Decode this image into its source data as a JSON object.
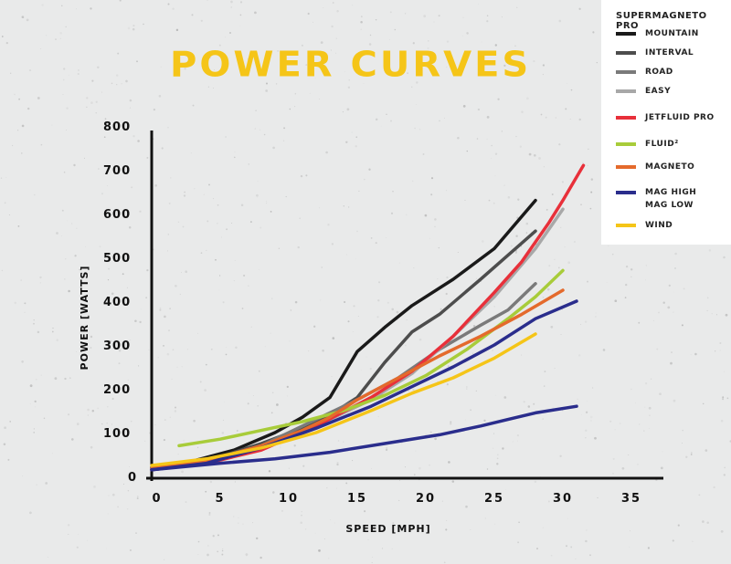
{
  "chart_data": {
    "type": "line",
    "title": "POWER CURVES",
    "xlabel": "SPEED [MPH]",
    "ylabel": "POWER [WATTS]",
    "xlim": [
      0,
      36
    ],
    "ylim": [
      0,
      800
    ],
    "xticks": [
      0,
      5,
      10,
      15,
      20,
      25,
      30,
      35
    ],
    "yticks": [
      0,
      100,
      200,
      300,
      400,
      500,
      600,
      700,
      800
    ],
    "grid": false,
    "legend_position": "top-right",
    "legend_group_title": "SUPERMAGNETO PRO",
    "series": [
      {
        "name": "MOUNTAIN",
        "color": "#1a1a1a",
        "points": [
          [
            0,
            20
          ],
          [
            3,
            35
          ],
          [
            6,
            60
          ],
          [
            9,
            100
          ],
          [
            11,
            135
          ],
          [
            13,
            180
          ],
          [
            15,
            285
          ],
          [
            17,
            340
          ],
          [
            19,
            390
          ],
          [
            22,
            450
          ],
          [
            25,
            520
          ],
          [
            28,
            630
          ]
        ]
      },
      {
        "name": "INTERVAL",
        "color": "#4d4d4d",
        "points": [
          [
            0,
            20
          ],
          [
            4,
            35
          ],
          [
            8,
            75
          ],
          [
            11,
            110
          ],
          [
            13,
            140
          ],
          [
            15,
            180
          ],
          [
            17,
            260
          ],
          [
            19,
            330
          ],
          [
            21,
            370
          ],
          [
            24,
            450
          ],
          [
            28,
            560
          ]
        ]
      },
      {
        "name": "ROAD",
        "color": "#7a7a7a",
        "points": [
          [
            0,
            20
          ],
          [
            4,
            35
          ],
          [
            8,
            70
          ],
          [
            12,
            130
          ],
          [
            15,
            175
          ],
          [
            18,
            225
          ],
          [
            21,
            290
          ],
          [
            24,
            345
          ],
          [
            26,
            380
          ],
          [
            28,
            440
          ]
        ]
      },
      {
        "name": "EASY",
        "color": "#a8a8a8",
        "points": [
          [
            0,
            18
          ],
          [
            4,
            30
          ],
          [
            8,
            65
          ],
          [
            12,
            115
          ],
          [
            16,
            175
          ],
          [
            19,
            235
          ],
          [
            22,
            320
          ],
          [
            25,
            410
          ],
          [
            28,
            520
          ],
          [
            30,
            610
          ]
        ]
      },
      {
        "name": "JETFLUID PRO",
        "color": "#e8303a",
        "points": [
          [
            0,
            15
          ],
          [
            4,
            30
          ],
          [
            8,
            60
          ],
          [
            12,
            115
          ],
          [
            16,
            180
          ],
          [
            19,
            240
          ],
          [
            22,
            320
          ],
          [
            25,
            420
          ],
          [
            27,
            490
          ],
          [
            29,
            580
          ],
          [
            30,
            630
          ],
          [
            31.5,
            710
          ]
        ]
      },
      {
        "name": "FLUID²",
        "color": "#a8cc3a",
        "points": [
          [
            2,
            70
          ],
          [
            5,
            85
          ],
          [
            8,
            105
          ],
          [
            11,
            125
          ],
          [
            14,
            150
          ],
          [
            17,
            185
          ],
          [
            20,
            230
          ],
          [
            23,
            290
          ],
          [
            26,
            360
          ],
          [
            28,
            410
          ],
          [
            30,
            470
          ]
        ]
      },
      {
        "name": "MAGNETO",
        "color": "#e46a2c",
        "points": [
          [
            0,
            18
          ],
          [
            4,
            35
          ],
          [
            8,
            70
          ],
          [
            11,
            105
          ],
          [
            13,
            135
          ],
          [
            15,
            175
          ],
          [
            18,
            225
          ],
          [
            21,
            275
          ],
          [
            24,
            320
          ],
          [
            27,
            370
          ],
          [
            30,
            425
          ]
        ]
      },
      {
        "name": "MAG HIGH",
        "color": "#2a2d8c",
        "points": [
          [
            0,
            15
          ],
          [
            4,
            30
          ],
          [
            8,
            65
          ],
          [
            12,
            110
          ],
          [
            16,
            160
          ],
          [
            19,
            205
          ],
          [
            22,
            250
          ],
          [
            25,
            300
          ],
          [
            28,
            360
          ],
          [
            31,
            400
          ]
        ]
      },
      {
        "name": "MAG LOW",
        "color": "#2a2d8c",
        "points": [
          [
            0,
            15
          ],
          [
            5,
            30
          ],
          [
            9,
            40
          ],
          [
            13,
            55
          ],
          [
            17,
            75
          ],
          [
            21,
            95
          ],
          [
            24,
            115
          ],
          [
            26,
            130
          ],
          [
            28,
            145
          ],
          [
            31,
            160
          ]
        ]
      },
      {
        "name": "WIND",
        "color": "#f5c518",
        "points": [
          [
            0,
            25
          ],
          [
            4,
            40
          ],
          [
            8,
            65
          ],
          [
            12,
            100
          ],
          [
            16,
            150
          ],
          [
            19,
            190
          ],
          [
            22,
            225
          ],
          [
            25,
            270
          ],
          [
            28,
            325
          ]
        ]
      }
    ]
  },
  "legend": {
    "items": [
      {
        "label": "MOUNTAIN",
        "color": "#1a1a1a"
      },
      {
        "label": "INTERVAL",
        "color": "#4d4d4d"
      },
      {
        "label": "ROAD",
        "color": "#7a7a7a"
      },
      {
        "label": "EASY",
        "color": "#a8a8a8"
      },
      {
        "label": "JETFLUID PRO",
        "color": "#e8303a"
      },
      {
        "label": "FLUID²",
        "color": "#a8cc3a"
      },
      {
        "label": "MAGNETO",
        "color": "#e46a2c"
      },
      {
        "label": "MAG HIGH",
        "label2": "MAG LOW",
        "color": "#2a2d8c"
      },
      {
        "label": "WIND",
        "color": "#f5c518"
      }
    ]
  }
}
